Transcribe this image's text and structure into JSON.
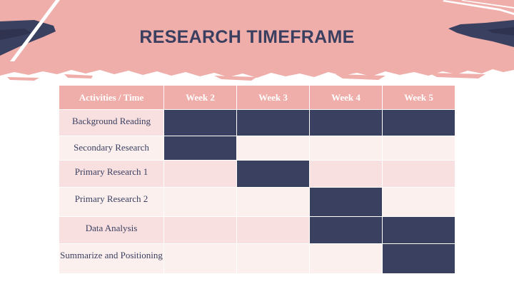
{
  "title": "RESEARCH TIMEFRAME",
  "table": {
    "headers": [
      "Activities / Time",
      "Week 2",
      "Week 3",
      "Week 4",
      "Week 5"
    ],
    "rows": [
      {
        "label": "Background Reading",
        "active": [
          true,
          true,
          true,
          true
        ]
      },
      {
        "label": "Secondary Research",
        "active": [
          true,
          false,
          false,
          false
        ]
      },
      {
        "label": "Primary Research 1",
        "active": [
          false,
          true,
          false,
          false
        ]
      },
      {
        "label": "Primary Research 2",
        "active": [
          false,
          false,
          true,
          false
        ]
      },
      {
        "label": "Data Analysis",
        "active": [
          false,
          false,
          true,
          true
        ]
      },
      {
        "label": "Summarize and Positioning",
        "active": [
          false,
          false,
          false,
          true
        ]
      }
    ]
  },
  "colors": {
    "header_band": "#f0aeaa",
    "navy": "#3a4060",
    "row_odd": "#f8e0e0",
    "row_even": "#fcf0ef",
    "title": "#3a3f60"
  }
}
